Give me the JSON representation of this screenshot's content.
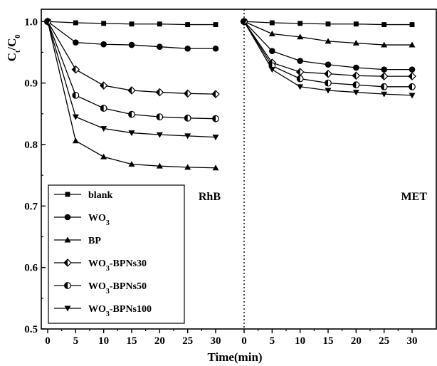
{
  "chart_data": {
    "type": "line",
    "xlabel": "Time(min)",
    "ylabel": "C_t/C_0",
    "ylabel_main": "C",
    "ylabel_sub1": "t",
    "ylabel_sep": "/C",
    "ylabel_sub2": "0",
    "ylim": [
      0.5,
      1.02
    ],
    "yticks": [
      "0.5",
      "0.6",
      "0.7",
      "0.8",
      "0.9",
      "1.0"
    ],
    "grid": false,
    "legend_position": "bottom-left",
    "panels": [
      {
        "name": "RhB",
        "x": [
          0,
          5,
          10,
          15,
          20,
          25,
          30
        ],
        "xticks": [
          "0",
          "5",
          "10",
          "15",
          "20",
          "25",
          "30"
        ],
        "series": [
          {
            "name": "blank",
            "marker": "square",
            "values": [
              1.0,
              0.998,
              0.997,
              0.996,
              0.996,
              0.995,
              0.995
            ]
          },
          {
            "name": "WO3",
            "marker": "circle",
            "values": [
              1.0,
              0.966,
              0.963,
              0.962,
              0.959,
              0.956,
              0.956
            ]
          },
          {
            "name": "BP",
            "marker": "triangle",
            "values": [
              1.0,
              0.806,
              0.78,
              0.768,
              0.765,
              0.763,
              0.762
            ]
          },
          {
            "name": "WO3-BPNs30",
            "marker": "diamond-half",
            "values": [
              1.0,
              0.922,
              0.896,
              0.888,
              0.885,
              0.883,
              0.882
            ]
          },
          {
            "name": "WO3-BPNs50",
            "marker": "circle-half",
            "values": [
              1.0,
              0.88,
              0.859,
              0.849,
              0.845,
              0.843,
              0.842
            ]
          },
          {
            "name": "WO3-BPNs100",
            "marker": "triangle-down",
            "values": [
              1.0,
              0.845,
              0.826,
              0.819,
              0.816,
              0.814,
              0.812
            ]
          }
        ]
      },
      {
        "name": "MET",
        "x": [
          0,
          5,
          10,
          15,
          20,
          25,
          30
        ],
        "xticks": [
          "0",
          "5",
          "10",
          "15",
          "20",
          "25",
          "30"
        ],
        "series": [
          {
            "name": "blank",
            "marker": "square",
            "values": [
              1.0,
              0.998,
              0.997,
              0.996,
              0.996,
              0.995,
              0.995
            ]
          },
          {
            "name": "WO3",
            "marker": "circle",
            "values": [
              1.0,
              0.952,
              0.936,
              0.93,
              0.925,
              0.922,
              0.922
            ]
          },
          {
            "name": "BP",
            "marker": "triangle",
            "values": [
              1.0,
              0.98,
              0.975,
              0.968,
              0.965,
              0.962,
              0.962
            ]
          },
          {
            "name": "WO3-BPNs30",
            "marker": "diamond-half",
            "values": [
              1.0,
              0.933,
              0.918,
              0.915,
              0.912,
              0.911,
              0.911
            ]
          },
          {
            "name": "WO3-BPNs50",
            "marker": "circle-half",
            "values": [
              1.0,
              0.928,
              0.907,
              0.9,
              0.897,
              0.894,
              0.894
            ]
          },
          {
            "name": "WO3-BPNs100",
            "marker": "triangle-down",
            "values": [
              1.0,
              0.922,
              0.894,
              0.888,
              0.885,
              0.882,
              0.88
            ]
          }
        ]
      }
    ],
    "legend": [
      {
        "base": "blank",
        "sub": "",
        "rest": "",
        "marker": "square"
      },
      {
        "base": "WO",
        "sub": "3",
        "rest": "",
        "marker": "circle"
      },
      {
        "base": "BP",
        "sub": "",
        "rest": "",
        "marker": "triangle"
      },
      {
        "base": "WO",
        "sub": "3",
        "rest": "-BPNs30",
        "marker": "diamond-half"
      },
      {
        "base": "WO",
        "sub": "3",
        "rest": "-BPNs50",
        "marker": "circle-half"
      },
      {
        "base": "WO",
        "sub": "3",
        "rest": "-BPNs100",
        "marker": "triangle-down"
      }
    ]
  }
}
